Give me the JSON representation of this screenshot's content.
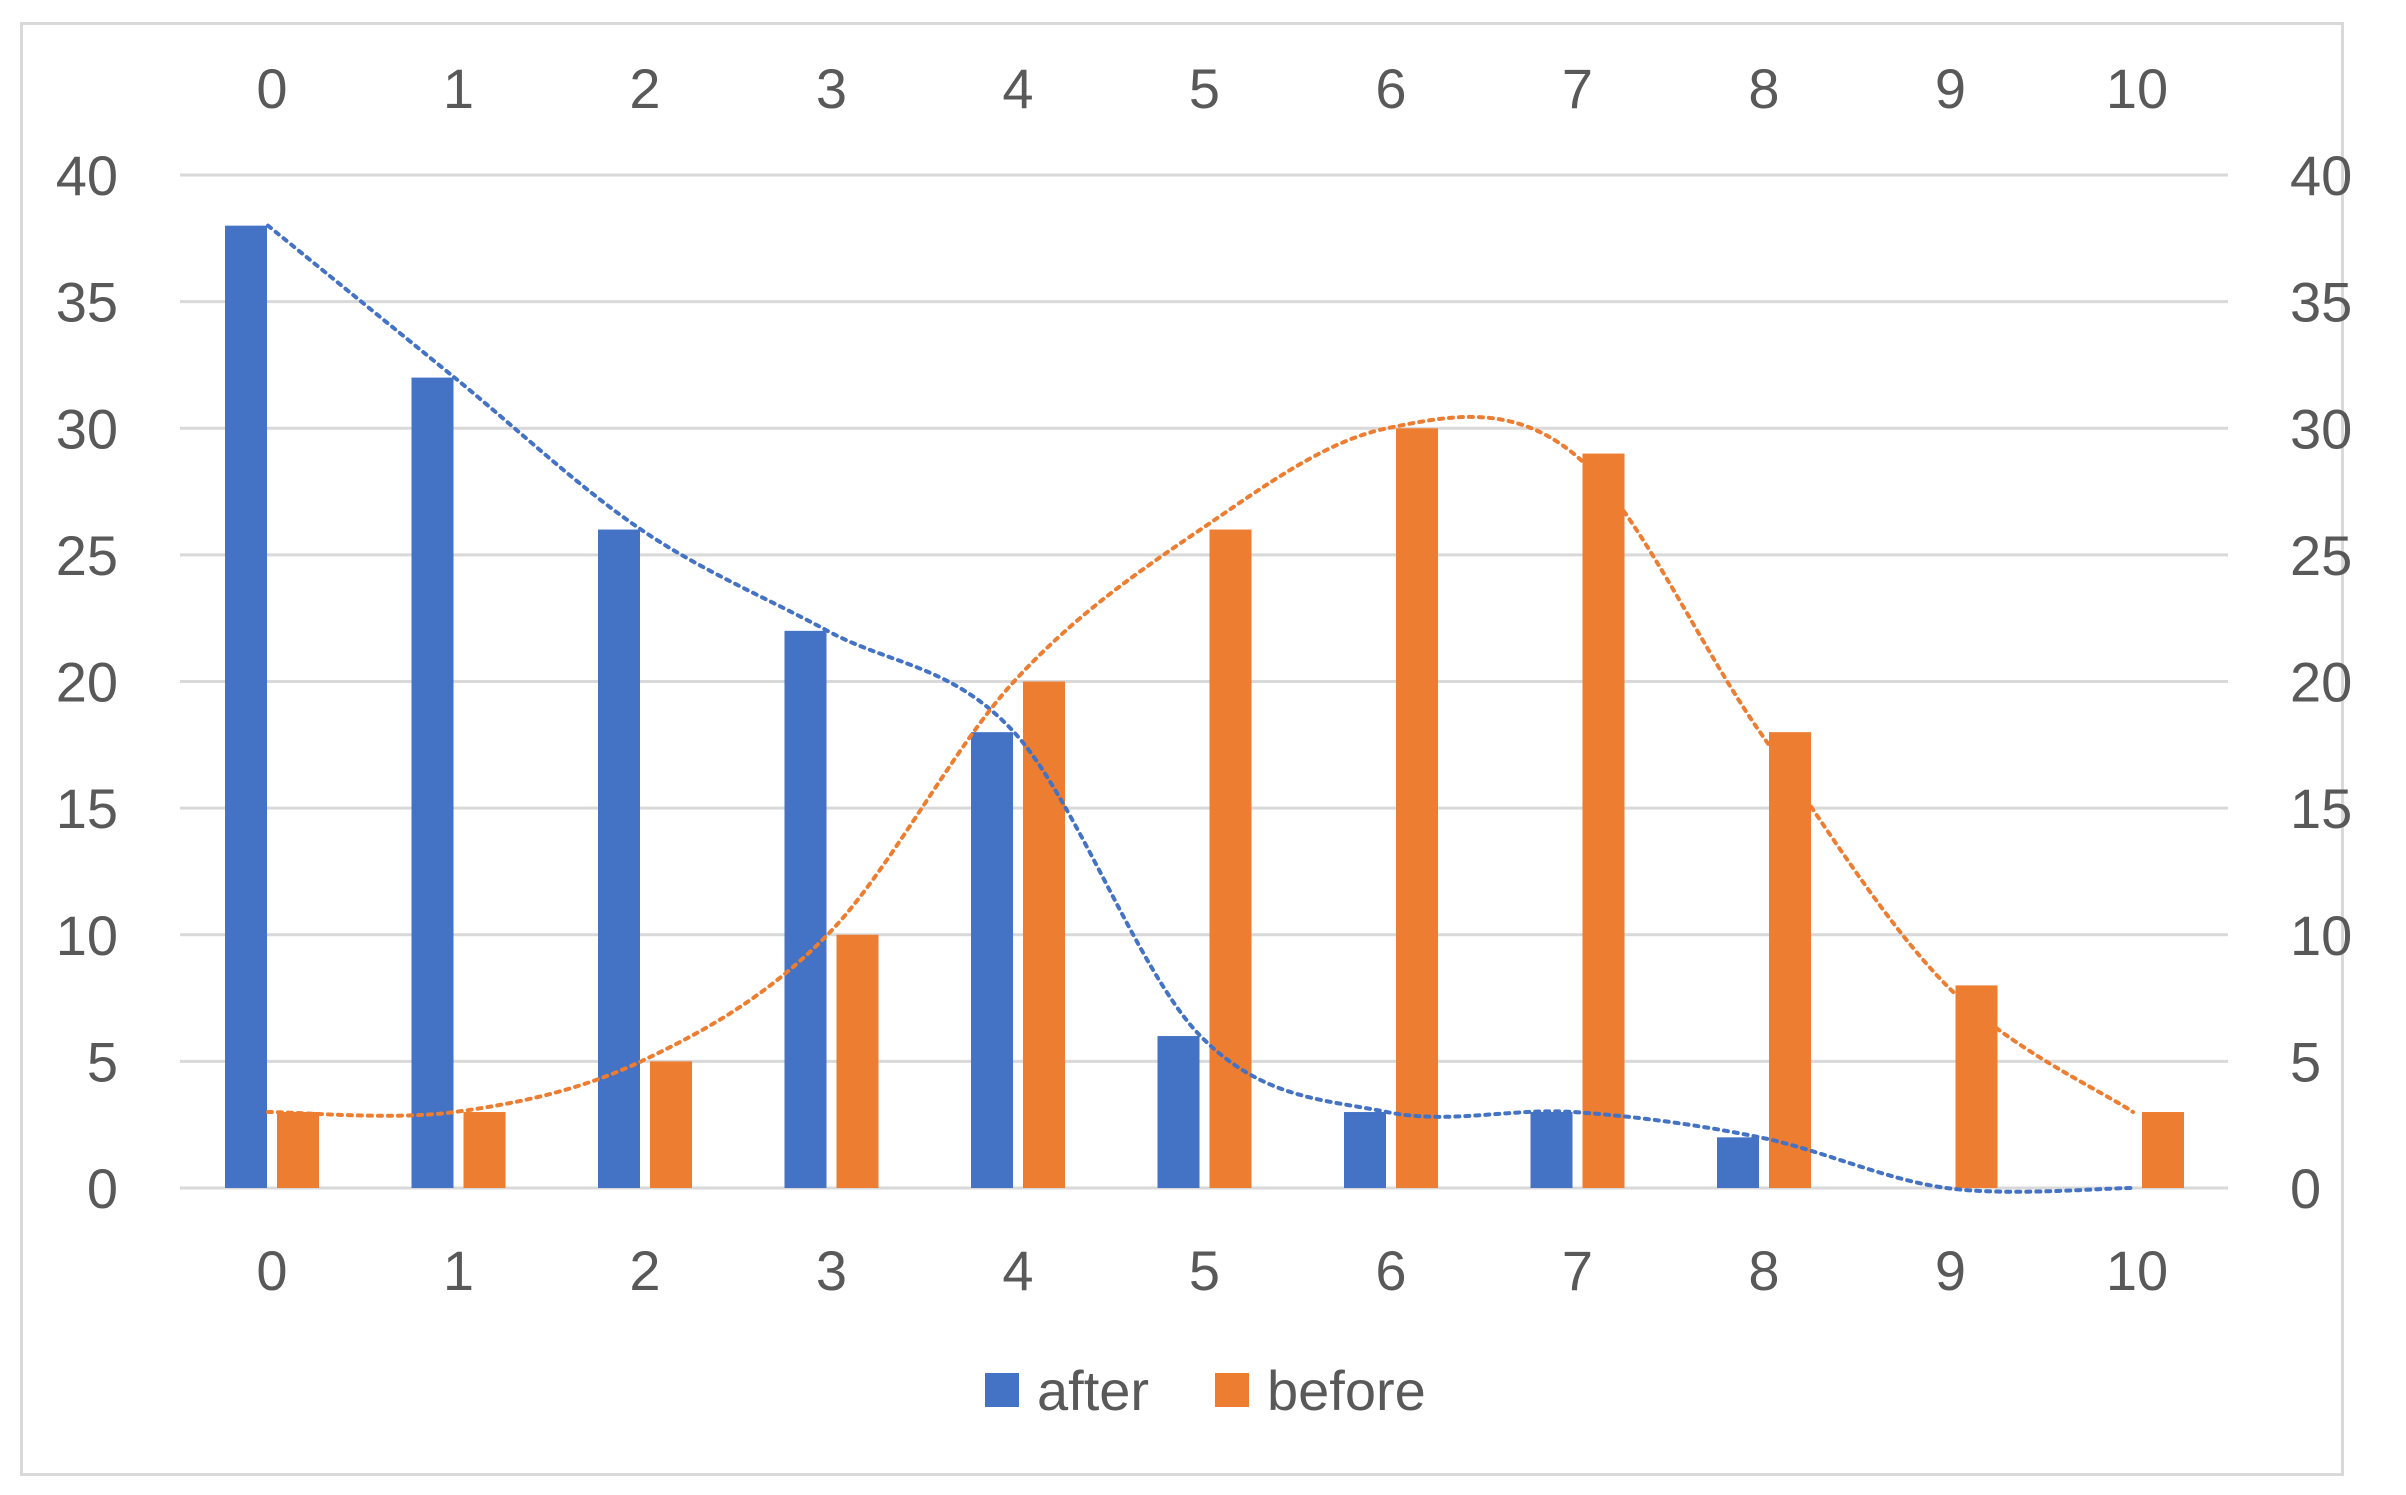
{
  "chart_data": {
    "type": "bar",
    "title": "",
    "xlabel": "",
    "ylabel": "",
    "categories": [
      "0",
      "1",
      "2",
      "3",
      "4",
      "5",
      "6",
      "7",
      "8",
      "9",
      "10"
    ],
    "ylim": [
      0,
      40
    ],
    "yticks": [
      "0",
      "5",
      "10",
      "15",
      "20",
      "25",
      "30",
      "35",
      "40"
    ],
    "grid": true,
    "legend_position": "bottom",
    "series": [
      {
        "name": "after",
        "color": "#4472c4",
        "values": [
          38,
          32,
          26,
          22,
          18,
          6,
          3,
          3,
          2,
          0,
          0
        ],
        "trendline": "dotted"
      },
      {
        "name": "before",
        "color": "#ed7d31",
        "values": [
          3,
          3,
          5,
          10,
          20,
          26,
          30,
          29,
          18,
          8,
          3
        ],
        "trendline": "dotted"
      }
    ]
  }
}
